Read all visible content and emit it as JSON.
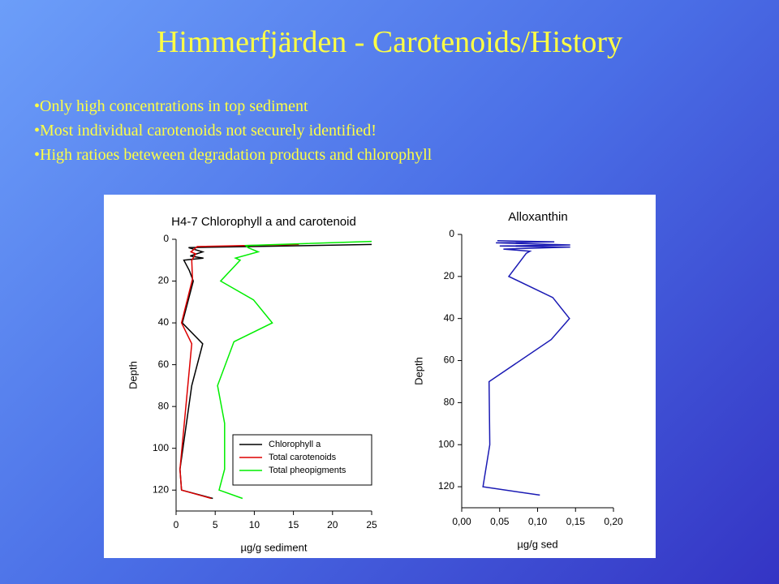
{
  "slide": {
    "title": "Himmerfjärden - Carotenoids/History",
    "bullets": [
      "Only high concentrations in top sediment",
      "Most individual carotenoids not securely identified!",
      "High ratioes beteween degradation products and chlorophyll"
    ]
  },
  "chart_data": [
    {
      "type": "line",
      "title": "H4-7 Chlorophyll a and carotenoid",
      "x_label": "µg/g sediment",
      "y_label": "Depth",
      "xlim": [
        0,
        25
      ],
      "xticks": [
        0,
        5,
        10,
        15,
        20,
        25
      ],
      "ylim": [
        0,
        130
      ],
      "yticks": [
        0,
        20,
        40,
        60,
        80,
        100,
        120
      ],
      "y_inverted": true,
      "legend": "lower right",
      "series": [
        {
          "name": "Chlorophyll a",
          "color": "#000000",
          "depth": [
            2.5,
            4,
            6,
            8,
            9,
            10,
            15,
            20,
            40,
            50,
            70,
            110,
            120,
            124
          ],
          "values": [
            25,
            1.6,
            3.4,
            1.8,
            3.5,
            1.0,
            1.7,
            2.2,
            0.8,
            3.4,
            2.0,
            0.5,
            0.7,
            4.7
          ]
        },
        {
          "name": "Total carotenoids",
          "color": "#dd0000",
          "depth": [
            2.5,
            3.5,
            6,
            7,
            10,
            19,
            40,
            50,
            110,
            120,
            124
          ],
          "values": [
            15.7,
            2.7,
            1.9,
            2.5,
            2.0,
            2.1,
            0.7,
            2.0,
            0.5,
            0.7,
            4.5
          ]
        },
        {
          "name": "Total pheopigments",
          "color": "#00ee00",
          "depth": [
            1,
            3,
            4,
            6,
            9,
            10,
            20,
            29,
            40,
            49,
            70,
            88,
            110,
            120,
            124
          ],
          "values": [
            25,
            8.9,
            9.2,
            10.5,
            7.6,
            8.2,
            5.7,
            9.9,
            12.3,
            7.4,
            5.3,
            6.2,
            6.2,
            5.5,
            8.5
          ]
        }
      ]
    },
    {
      "type": "line",
      "title": "Alloxanthin",
      "x_label": "µg/g sed",
      "y_label": "Depth",
      "xlim": [
        0,
        0.2
      ],
      "xticks": [
        {
          "value": 0,
          "label": "0,00"
        },
        {
          "value": 0.05,
          "label": "0,05"
        },
        {
          "value": 0.1,
          "label": "0,10"
        },
        {
          "value": 0.15,
          "label": "0,15"
        },
        {
          "value": 0.2,
          "label": "0,20"
        }
      ],
      "ylim": [
        0,
        130
      ],
      "yticks": [
        0,
        20,
        40,
        60,
        80,
        100,
        120
      ],
      "y_inverted": true,
      "series": [
        {
          "color": "#1a1ab4",
          "depth": [
            3,
            3.5,
            4,
            5,
            5.5,
            6,
            7,
            8,
            9,
            20,
            30,
            40,
            50,
            70,
            100,
            120,
            124
          ],
          "values": [
            0.047,
            0.122,
            0.045,
            0.143,
            0.05,
            0.143,
            0.055,
            0.09,
            0.085,
            0.062,
            0.12,
            0.142,
            0.118,
            0.036,
            0.037,
            0.028,
            0.103
          ]
        }
      ]
    }
  ]
}
